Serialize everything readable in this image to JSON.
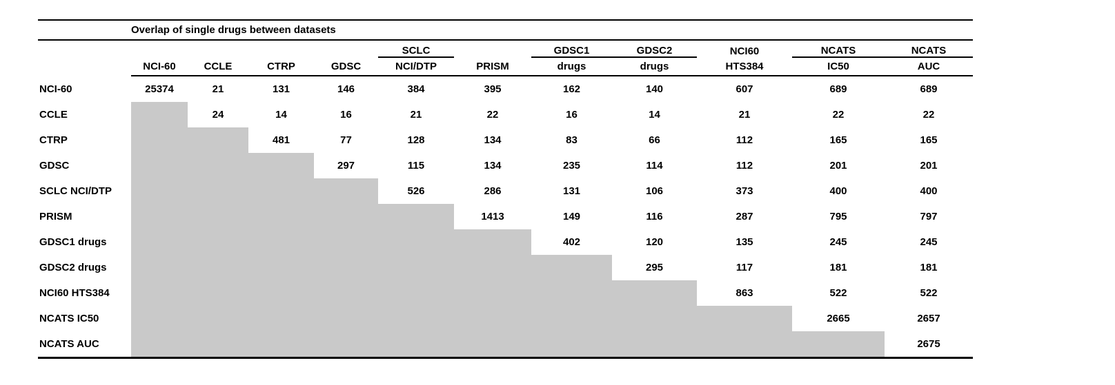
{
  "style": {
    "background": "#ffffff",
    "gray_cell_color": "#c9c9c9",
    "rule_color": "#000000"
  },
  "chart_data": {
    "type": "table",
    "title": "Overlap of single drugs between datasets",
    "header_top": [
      "",
      "",
      "",
      "",
      "SCLC",
      "",
      "GDSC1",
      "GDSC2",
      "NCI60",
      "NCATS",
      "NCATS"
    ],
    "header_top_underline": [
      false,
      false,
      false,
      false,
      true,
      false,
      true,
      true,
      false,
      true,
      true
    ],
    "header_bottom": [
      "NCI-60",
      "CCLE",
      "CTRP",
      "GDSC",
      "NCI/DTP",
      "PRISM",
      "drugs",
      "drugs",
      "HTS384",
      "IC50",
      "AUC"
    ],
    "row_labels": [
      "NCI-60",
      "CCLE",
      "CTRP",
      "GDSC",
      "SCLC NCI/DTP",
      "PRISM",
      "GDSC1 drugs",
      "GDSC2 drugs",
      "NCI60 HTS384",
      "NCATS IC50",
      "NCATS AUC"
    ],
    "values": [
      [
        25374,
        21,
        131,
        146,
        384,
        395,
        162,
        140,
        607,
        689,
        689
      ],
      [
        null,
        24,
        14,
        16,
        21,
        22,
        16,
        14,
        21,
        22,
        22
      ],
      [
        null,
        null,
        481,
        77,
        128,
        134,
        83,
        66,
        112,
        165,
        165
      ],
      [
        null,
        null,
        null,
        297,
        115,
        134,
        235,
        114,
        112,
        201,
        201
      ],
      [
        null,
        null,
        null,
        null,
        526,
        286,
        131,
        106,
        373,
        400,
        400
      ],
      [
        null,
        null,
        null,
        null,
        null,
        1413,
        149,
        116,
        287,
        795,
        797
      ],
      [
        null,
        null,
        null,
        null,
        null,
        null,
        402,
        120,
        135,
        245,
        245
      ],
      [
        null,
        null,
        null,
        null,
        null,
        null,
        null,
        295,
        117,
        181,
        181
      ],
      [
        null,
        null,
        null,
        null,
        null,
        null,
        null,
        null,
        863,
        522,
        522
      ],
      [
        null,
        null,
        null,
        null,
        null,
        null,
        null,
        null,
        null,
        2665,
        2657
      ],
      [
        null,
        null,
        null,
        null,
        null,
        null,
        null,
        null,
        null,
        null,
        2675
      ]
    ],
    "layout_hints": {
      "shading": "cells below the diagonal are shaded gray (lower triangle blank)",
      "matrix": "symmetric overlap matrix, upper triangle shown with diagonal = dataset size"
    }
  }
}
